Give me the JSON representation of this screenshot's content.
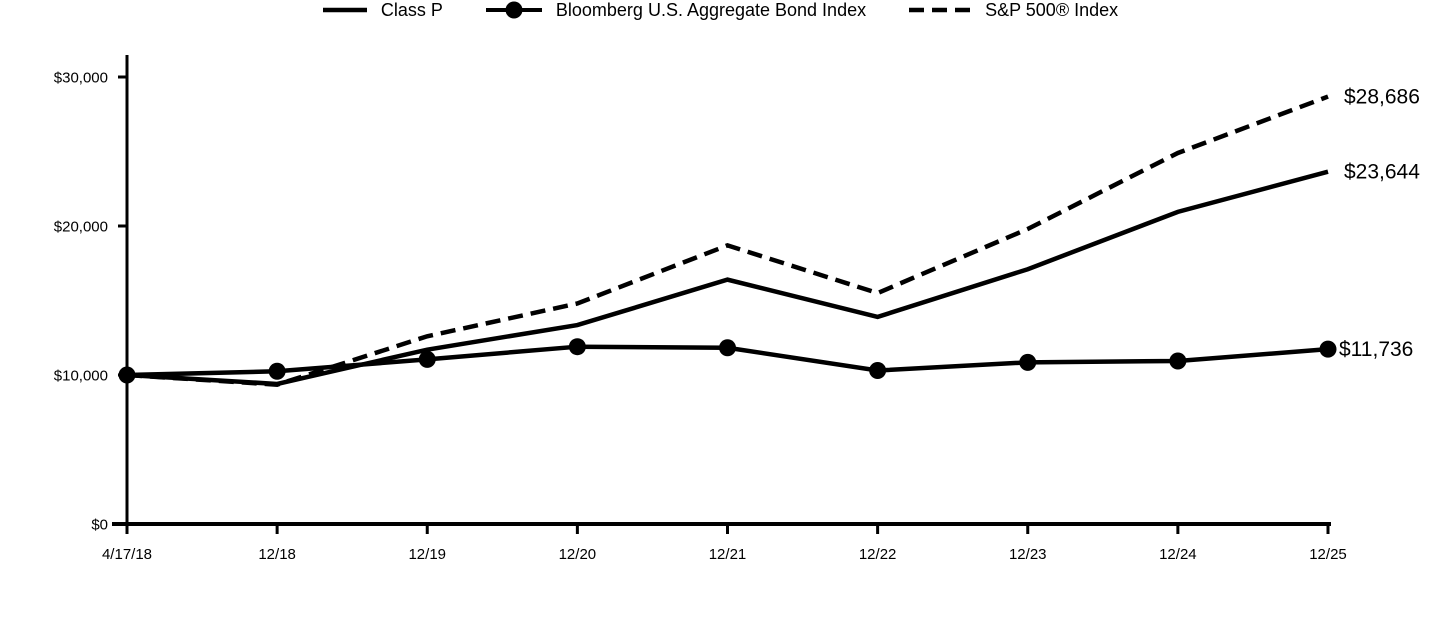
{
  "chart_data": {
    "type": "line",
    "x_labels": [
      "4/17/18",
      "12/18",
      "12/19",
      "12/20",
      "12/21",
      "12/22",
      "12/23",
      "12/24",
      "12/25"
    ],
    "y_ticks": [
      {
        "value": 0,
        "label": "$0"
      },
      {
        "value": 10000,
        "label": "$10,000"
      },
      {
        "value": 20000,
        "label": "$20,000"
      },
      {
        "value": 30000,
        "label": "$30,000"
      }
    ],
    "ylim": [
      0,
      31300
    ],
    "grid": false,
    "legend_position": "bottom-center",
    "axis_color": "#000000",
    "series": [
      {
        "name": "Class P",
        "style": "solid",
        "marker": "none",
        "color": "#000000",
        "end_label": "$23,644",
        "values": [
          10000,
          9400,
          11700,
          13350,
          16400,
          13900,
          17100,
          20950,
          23644
        ]
      },
      {
        "name": "Bloomberg U.S. Aggregate Bond Index",
        "style": "solid",
        "marker": "circle",
        "color": "#000000",
        "end_label": "$11,736",
        "values": [
          10000,
          10250,
          11050,
          11900,
          11830,
          10300,
          10850,
          10940,
          11736
        ]
      },
      {
        "name": "S&P 500® Index",
        "style": "dashed",
        "marker": "none",
        "color": "#000000",
        "end_label": "$28,686",
        "values": [
          10000,
          9350,
          12600,
          14800,
          18700,
          15500,
          19800,
          24900,
          28686
        ]
      }
    ]
  }
}
